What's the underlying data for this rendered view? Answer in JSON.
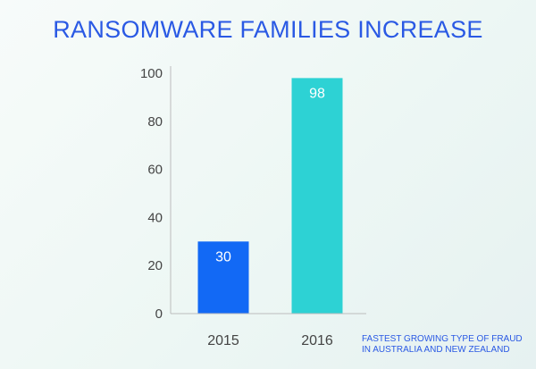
{
  "colors": {
    "title": "#2a59e4",
    "axis": "#bcbcbc",
    "tick_text": "#444444",
    "bar_labels": "#ffffff",
    "footnote": "#2a59e4",
    "series": [
      "#1269f5",
      "#2dd2d4"
    ]
  },
  "footnote": {
    "line1": "FASTEST GROWING TYPE OF FRAUD",
    "line2": "IN AUSTRALIA AND NEW ZEALAND"
  },
  "chart_data": {
    "type": "bar",
    "title": "RANSOMWARE FAMILIES INCREASE",
    "categories": [
      "2015",
      "2016"
    ],
    "values": [
      30,
      98
    ],
    "bar_colors": [
      "#1269f5",
      "#2dd2d4"
    ],
    "ylim": [
      0,
      100
    ],
    "yticks": [
      0,
      20,
      40,
      60,
      80,
      100
    ],
    "xlabel": "",
    "ylabel": "",
    "grid": false,
    "data_labels": true
  }
}
